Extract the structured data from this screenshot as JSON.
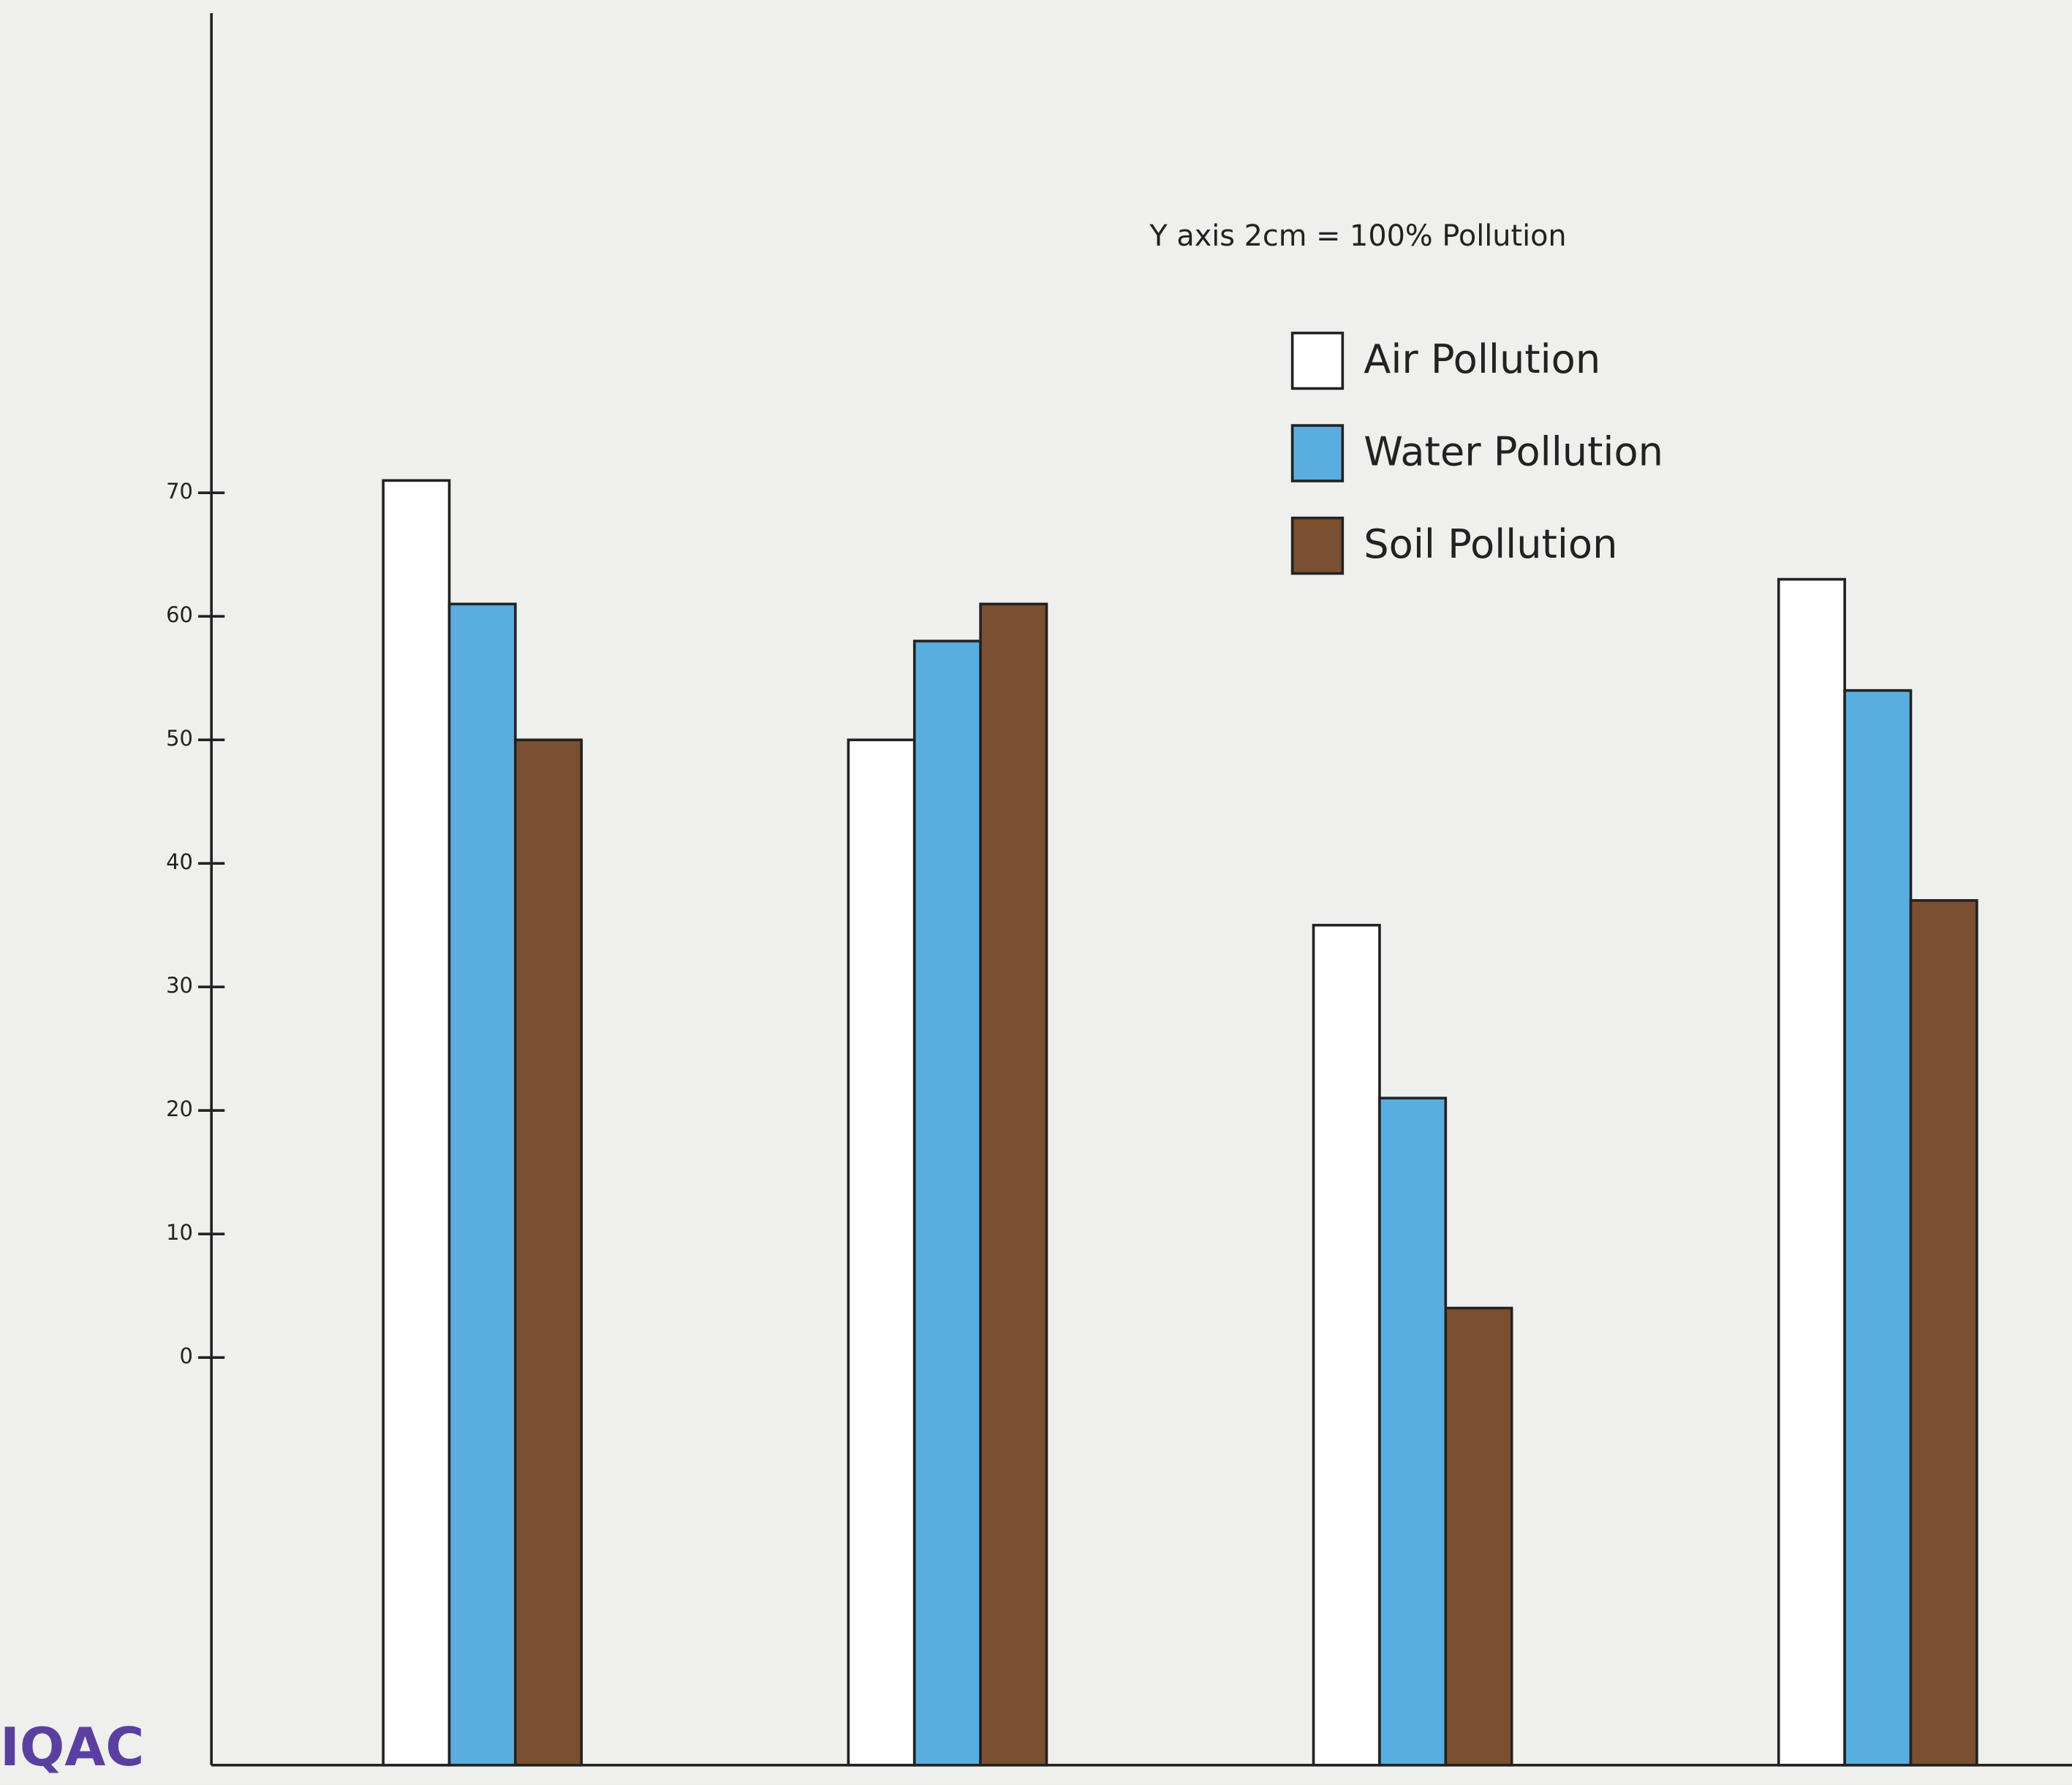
{
  "chart_data": {
    "type": "bar",
    "annotation": "Y axis 2cm = 100% Pollution",
    "watermark": "IQAC",
    "categories": [
      null,
      null,
      null,
      null
    ],
    "series": [
      {
        "name": "Air Pollution",
        "color": "#ffffff",
        "values": [
          71,
          50,
          35,
          63
        ]
      },
      {
        "name": "Water Pollution",
        "color": "#5aaedf",
        "values": [
          61,
          58,
          21,
          54
        ]
      },
      {
        "name": "Soil Pollution",
        "color": "#7a5030",
        "values": [
          50,
          61,
          4,
          37
        ]
      }
    ],
    "ylim": [
      -33,
      110
    ],
    "yticks": [
      0,
      10,
      20,
      30,
      40,
      50,
      60,
      70
    ],
    "grid": false,
    "legend": "top-right"
  }
}
